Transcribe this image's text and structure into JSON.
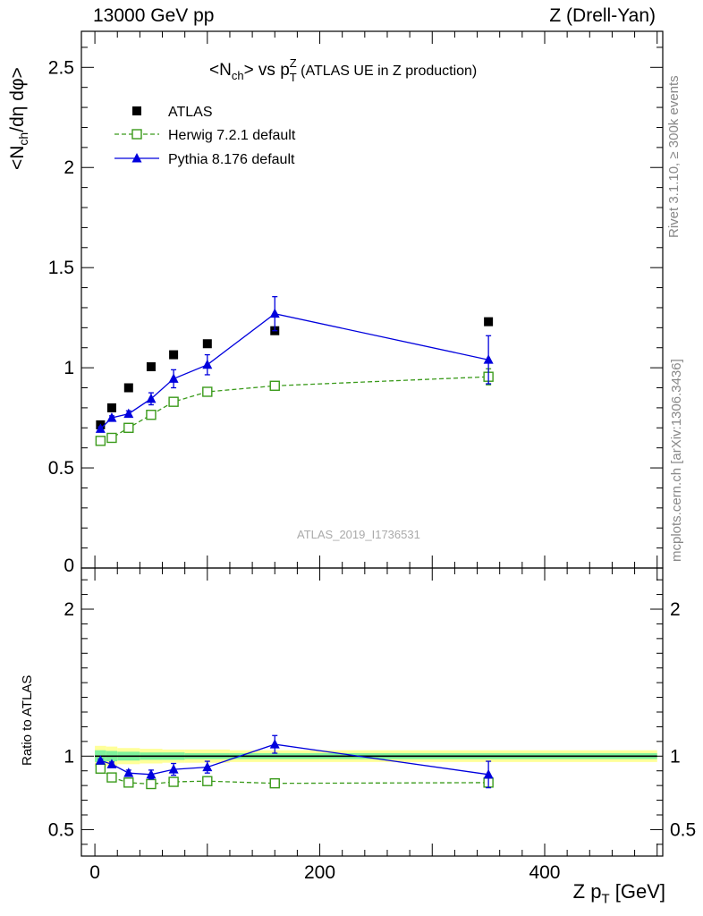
{
  "header": {
    "left": "13000 GeV pp",
    "right": "Z (Drell-Yan)"
  },
  "side_labels": {
    "rivet": "Rivet 3.1.10, ≥ 300k events",
    "mcplots": "mcplots.cern.ch [arXiv:1306.3436]"
  },
  "analysis_id": "ATLAS_2019_I1736531",
  "chart_data": [
    {
      "type": "scatter",
      "title_parts": {
        "n": "<N",
        "n_sub": "ch",
        "mid": "> vs p",
        "p_sup": "Z",
        "p_sub": "T",
        "rest": " (ATLAS UE in Z production)"
      },
      "ylabel_parts": {
        "a": "<N",
        "sub": "ch",
        "b": "/dη dφ>"
      },
      "xlim": [
        -12,
        505
      ],
      "ylim": [
        0,
        2.68
      ],
      "yticks": [
        0,
        0.5,
        1,
        1.5,
        2,
        2.5
      ],
      "ytick_labels": [
        "0",
        "0.5",
        "1",
        "1.5",
        "2",
        "2.5"
      ],
      "legend_position": "top-left",
      "series": [
        {
          "name": "ATLAS",
          "style": "data",
          "color": "#000000",
          "x": [
            5,
            15,
            30,
            50,
            70,
            100,
            160,
            350
          ],
          "y": [
            0.715,
            0.8,
            0.9,
            1.005,
            1.065,
            1.12,
            1.185,
            1.23
          ]
        },
        {
          "name": "Herwig 7.2.1 default",
          "style": "open-square-dashed",
          "color": "#3a9a1a",
          "x": [
            5,
            15,
            30,
            50,
            70,
            100,
            160,
            350
          ],
          "y": [
            0.635,
            0.65,
            0.7,
            0.765,
            0.83,
            0.88,
            0.91,
            0.955
          ],
          "err": [
            0.01,
            0.01,
            0.01,
            0.01,
            0.01,
            0.01,
            0.01,
            0.04
          ]
        },
        {
          "name": "Pythia 8.176 default",
          "style": "filled-triangle-solid",
          "color": "#0000dd",
          "x": [
            5,
            15,
            30,
            50,
            70,
            100,
            160,
            350
          ],
          "y": [
            0.695,
            0.75,
            0.77,
            0.845,
            0.945,
            1.015,
            1.27,
            1.04
          ],
          "err": [
            0.01,
            0.01,
            0.015,
            0.03,
            0.045,
            0.05,
            0.085,
            0.12
          ]
        }
      ]
    },
    {
      "type": "scatter",
      "ylabel": "Ratio to ATLAS",
      "xlabel_parts": {
        "a": "Z p",
        "sub": "T",
        "b": " [GeV]"
      },
      "xlim": [
        -12,
        505
      ],
      "ylim": [
        0.32,
        2.28
      ],
      "xticks": [
        0,
        200,
        400
      ],
      "xtick_labels": [
        "0",
        "200",
        "400"
      ],
      "yticks": [
        0.5,
        1,
        2
      ],
      "ytick_labels": [
        "0.5",
        "1",
        "2"
      ],
      "bands": {
        "x_edges": [
          0,
          10,
          20,
          40,
          60,
          80,
          120,
          200,
          500
        ],
        "inner_half": [
          0.04,
          0.035,
          0.03,
          0.025,
          0.025,
          0.02,
          0.02,
          0.02
        ],
        "outer_half": [
          0.07,
          0.065,
          0.055,
          0.05,
          0.045,
          0.045,
          0.04,
          0.04
        ],
        "inner_color": "#7df29b",
        "outer_color": "#ffff99"
      },
      "series": [
        {
          "name": "Herwig 7.2.1 default",
          "style": "open-square-dashed",
          "color": "#3a9a1a",
          "x": [
            5,
            15,
            30,
            50,
            70,
            100,
            160,
            350
          ],
          "y": [
            0.915,
            0.855,
            0.82,
            0.81,
            0.825,
            0.83,
            0.815,
            0.82
          ],
          "err": [
            0.01,
            0.01,
            0.01,
            0.01,
            0.01,
            0.01,
            0.01,
            0.025
          ]
        },
        {
          "name": "Pythia 8.176 default",
          "style": "filled-triangle-solid",
          "color": "#0000dd",
          "x": [
            5,
            15,
            30,
            50,
            70,
            100,
            160,
            350
          ],
          "y": [
            0.97,
            0.945,
            0.885,
            0.875,
            0.91,
            0.925,
            1.08,
            0.875
          ],
          "err": [
            0.01,
            0.015,
            0.02,
            0.03,
            0.04,
            0.04,
            0.06,
            0.09
          ]
        }
      ]
    }
  ]
}
